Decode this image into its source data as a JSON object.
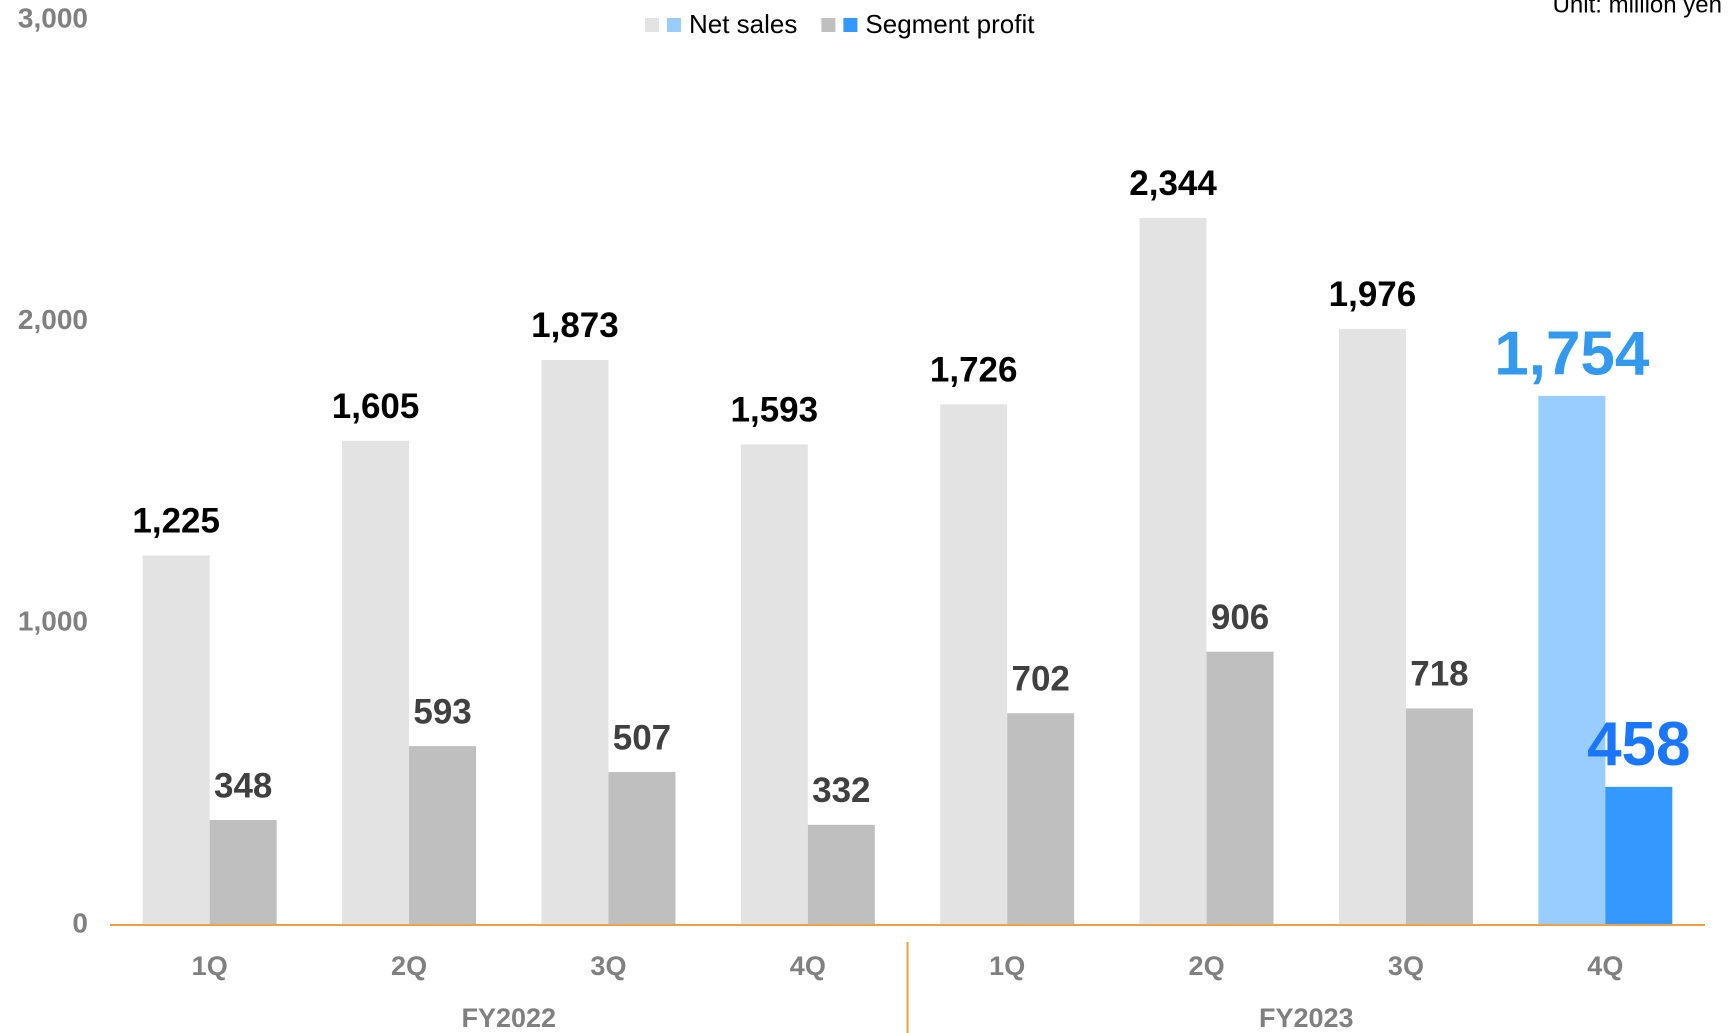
{
  "chart_data": {
    "type": "bar",
    "unit": "Unit: million yen",
    "categories": [
      "1Q",
      "2Q",
      "3Q",
      "4Q",
      "1Q",
      "2Q",
      "3Q",
      "4Q"
    ],
    "groups": [
      {
        "name": "FY2022",
        "size": 4
      },
      {
        "name": "FY2023",
        "size": 4
      }
    ],
    "series": [
      {
        "name": "Net sales",
        "colors": [
          "#e4e3e4",
          "#e4e3e4",
          "#e4e3e4",
          "#e4e3e4",
          "#e4e3e4",
          "#e4e3e4",
          "#e4e3e4",
          "#99ccff"
        ],
        "values": [
          1225,
          1605,
          1873,
          1593,
          1726,
          2344,
          1976,
          1754
        ],
        "value_labels": [
          "1,225",
          "1,605",
          "1,873",
          "1,593",
          "1,726",
          "2,344",
          "1,976",
          "1,754"
        ]
      },
      {
        "name": "Segment profit",
        "colors": [
          "#bfbfbf",
          "#bfbfbf",
          "#bfbfbf",
          "#bfbfbf",
          "#bfbfbf",
          "#bfbfbf",
          "#bfbfbf",
          "#3399ff"
        ],
        "values": [
          348,
          593,
          507,
          332,
          702,
          906,
          718,
          458
        ]
      }
    ],
    "ylim": [
      0,
      3000
    ],
    "yticks": [
      0,
      {
        "value": 1000,
        "label": "1,000"
      },
      {
        "value": 2000,
        "label": "2,000"
      },
      {
        "value": 3000,
        "label": "3,000"
      }
    ],
    "grid": false
  }
}
